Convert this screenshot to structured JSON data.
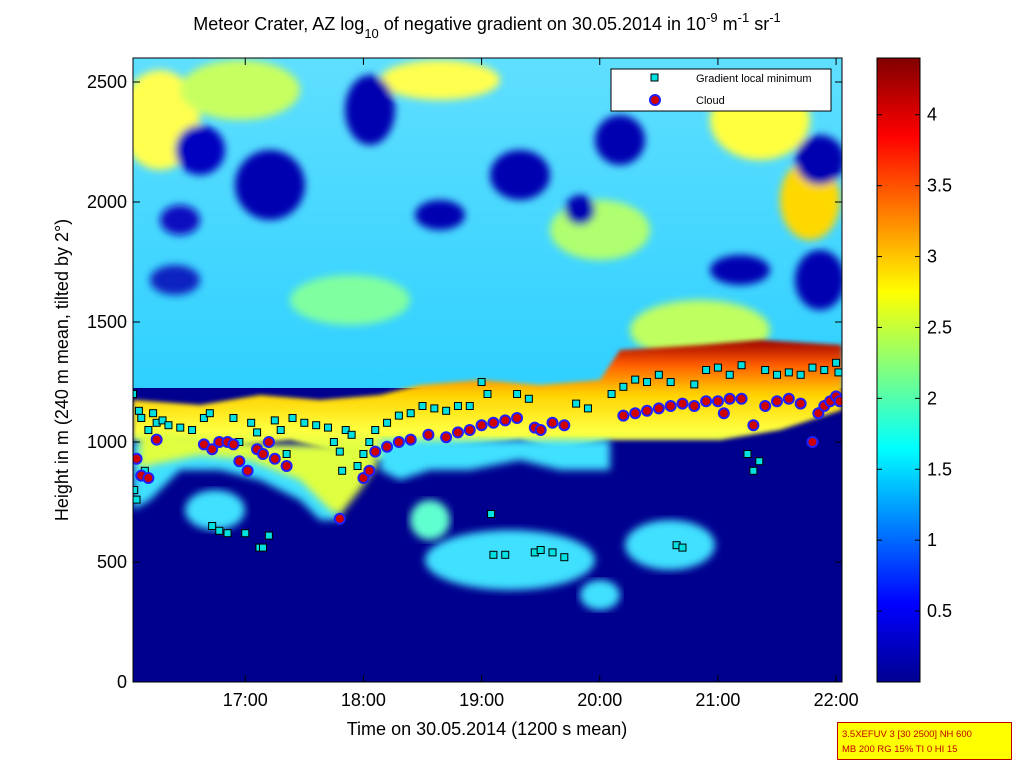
{
  "chart_data": {
    "type": "heatmap",
    "title": "Meteor Crater, AZ log",
    "title_sub": "10",
    "title_mid": " of negative gradient on 30.05.2014 in 10",
    "title_sup1": "-9",
    "title_unit_m": " m",
    "title_sup2": "-1",
    "title_unit_sr": " sr",
    "title_sup3": "-1",
    "xlabel": "Time on 30.05.2014 (1200 s mean)",
    "ylabel": "Height in m (240 m mean, tilted by 2°)",
    "x_range_hours": [
      16.05,
      22.05
    ],
    "y_range_m": [
      0,
      2600
    ],
    "x_ticks": [
      {
        "value": 17,
        "label": "17:00"
      },
      {
        "value": 18,
        "label": "18:00"
      },
      {
        "value": 19,
        "label": "19:00"
      },
      {
        "value": 20,
        "label": "20:00"
      },
      {
        "value": 21,
        "label": "21:00"
      },
      {
        "value": 22,
        "label": "22:00"
      }
    ],
    "y_ticks": [
      {
        "value": 0,
        "label": "0"
      },
      {
        "value": 500,
        "label": "500"
      },
      {
        "value": 1000,
        "label": "1000"
      },
      {
        "value": 1500,
        "label": "1500"
      },
      {
        "value": 2000,
        "label": "2000"
      },
      {
        "value": 2500,
        "label": "2500"
      }
    ],
    "colorbar": {
      "colormap": "jet",
      "range": [
        0,
        4.4
      ],
      "ticks": [
        {
          "value": 0.5,
          "label": "0.5"
        },
        {
          "value": 1,
          "label": "1"
        },
        {
          "value": 1.5,
          "label": "1.5"
        },
        {
          "value": 2,
          "label": "2"
        },
        {
          "value": 2.5,
          "label": "2.5"
        },
        {
          "value": 3,
          "label": "3"
        },
        {
          "value": 3.5,
          "label": "3.5"
        },
        {
          "value": 4,
          "label": "4"
        }
      ]
    },
    "legend_position": "top-right",
    "series": [
      {
        "name": "Gradient local minimum",
        "marker": "square",
        "color": "#00e0e0",
        "points": [
          [
            16.05,
            1200
          ],
          [
            16.06,
            800
          ],
          [
            16.08,
            760
          ],
          [
            16.1,
            1130
          ],
          [
            16.12,
            1100
          ],
          [
            16.15,
            880
          ],
          [
            16.18,
            1050
          ],
          [
            16.22,
            1120
          ],
          [
            16.25,
            1080
          ],
          [
            16.3,
            1090
          ],
          [
            16.35,
            1070
          ],
          [
            16.45,
            1060
          ],
          [
            16.55,
            1050
          ],
          [
            16.65,
            1100
          ],
          [
            16.7,
            1120
          ],
          [
            16.72,
            650
          ],
          [
            16.78,
            630
          ],
          [
            16.85,
            620
          ],
          [
            16.9,
            1100
          ],
          [
            16.95,
            1000
          ],
          [
            17.0,
            620
          ],
          [
            17.05,
            1080
          ],
          [
            17.1,
            1040
          ],
          [
            17.12,
            560
          ],
          [
            17.15,
            560
          ],
          [
            17.2,
            610
          ],
          [
            17.25,
            1090
          ],
          [
            17.3,
            1050
          ],
          [
            17.35,
            950
          ],
          [
            17.4,
            1100
          ],
          [
            17.5,
            1080
          ],
          [
            17.6,
            1070
          ],
          [
            17.7,
            1060
          ],
          [
            17.75,
            1000
          ],
          [
            17.8,
            960
          ],
          [
            17.82,
            880
          ],
          [
            17.85,
            1050
          ],
          [
            17.9,
            1030
          ],
          [
            17.95,
            900
          ],
          [
            18.0,
            950
          ],
          [
            18.05,
            1000
          ],
          [
            18.1,
            1050
          ],
          [
            18.2,
            1080
          ],
          [
            18.3,
            1110
          ],
          [
            18.4,
            1120
          ],
          [
            18.5,
            1150
          ],
          [
            18.6,
            1140
          ],
          [
            18.7,
            1130
          ],
          [
            18.8,
            1150
          ],
          [
            18.9,
            1150
          ],
          [
            19.0,
            1250
          ],
          [
            19.05,
            1200
          ],
          [
            19.08,
            700
          ],
          [
            19.1,
            530
          ],
          [
            19.2,
            530
          ],
          [
            19.3,
            1200
          ],
          [
            19.4,
            1180
          ],
          [
            19.45,
            540
          ],
          [
            19.5,
            550
          ],
          [
            19.6,
            540
          ],
          [
            19.7,
            520
          ],
          [
            19.8,
            1160
          ],
          [
            19.9,
            1140
          ],
          [
            20.1,
            1200
          ],
          [
            20.2,
            1230
          ],
          [
            20.3,
            1260
          ],
          [
            20.4,
            1250
          ],
          [
            20.5,
            1280
          ],
          [
            20.6,
            1250
          ],
          [
            20.65,
            570
          ],
          [
            20.7,
            560
          ],
          [
            20.8,
            1240
          ],
          [
            20.9,
            1300
          ],
          [
            21.0,
            1310
          ],
          [
            21.1,
            1280
          ],
          [
            21.2,
            1320
          ],
          [
            21.25,
            950
          ],
          [
            21.3,
            880
          ],
          [
            21.35,
            920
          ],
          [
            21.4,
            1300
          ],
          [
            21.5,
            1280
          ],
          [
            21.6,
            1290
          ],
          [
            21.7,
            1280
          ],
          [
            21.8,
            1310
          ],
          [
            21.9,
            1300
          ],
          [
            22.0,
            1330
          ],
          [
            22.02,
            1290
          ]
        ]
      },
      {
        "name": "Cloud",
        "marker": "circle",
        "color": "#d00000",
        "points": [
          [
            16.08,
            930
          ],
          [
            16.12,
            860
          ],
          [
            16.18,
            850
          ],
          [
            16.25,
            1010
          ],
          [
            16.65,
            990
          ],
          [
            16.72,
            970
          ],
          [
            16.78,
            1000
          ],
          [
            16.85,
            1000
          ],
          [
            16.9,
            990
          ],
          [
            16.95,
            920
          ],
          [
            17.02,
            880
          ],
          [
            17.1,
            970
          ],
          [
            17.15,
            950
          ],
          [
            17.2,
            1000
          ],
          [
            17.25,
            930
          ],
          [
            17.35,
            900
          ],
          [
            17.8,
            680
          ],
          [
            18.0,
            850
          ],
          [
            18.05,
            880
          ],
          [
            18.1,
            960
          ],
          [
            18.2,
            980
          ],
          [
            18.3,
            1000
          ],
          [
            18.4,
            1010
          ],
          [
            18.55,
            1030
          ],
          [
            18.7,
            1020
          ],
          [
            18.8,
            1040
          ],
          [
            18.9,
            1050
          ],
          [
            19.0,
            1070
          ],
          [
            19.1,
            1080
          ],
          [
            19.2,
            1090
          ],
          [
            19.3,
            1100
          ],
          [
            19.45,
            1060
          ],
          [
            19.5,
            1050
          ],
          [
            19.6,
            1080
          ],
          [
            19.7,
            1070
          ],
          [
            20.2,
            1110
          ],
          [
            20.3,
            1120
          ],
          [
            20.4,
            1130
          ],
          [
            20.5,
            1140
          ],
          [
            20.6,
            1150
          ],
          [
            20.7,
            1160
          ],
          [
            20.8,
            1150
          ],
          [
            20.9,
            1170
          ],
          [
            21.0,
            1170
          ],
          [
            21.05,
            1120
          ],
          [
            21.1,
            1180
          ],
          [
            21.2,
            1180
          ],
          [
            21.3,
            1070
          ],
          [
            21.4,
            1150
          ],
          [
            21.5,
            1170
          ],
          [
            21.6,
            1180
          ],
          [
            21.7,
            1160
          ],
          [
            21.8,
            1000
          ],
          [
            21.85,
            1120
          ],
          [
            21.9,
            1150
          ],
          [
            21.95,
            1170
          ],
          [
            22.0,
            1190
          ],
          [
            22.03,
            1170
          ]
        ]
      }
    ]
  },
  "infobox": {
    "line1": "3.5XEFUV 3 [30 2500] NH 600",
    "line2": "MB 200 RG 15% TI 0 HI 15"
  }
}
